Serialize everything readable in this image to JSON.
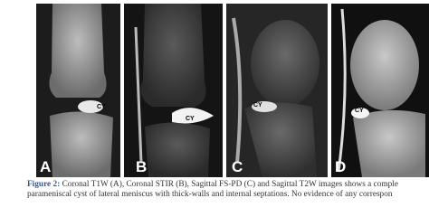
{
  "figure": {
    "panels": [
      {
        "label": "A",
        "annotation": "CY"
      },
      {
        "label": "B",
        "annotation": "CY"
      },
      {
        "label": "C",
        "annotation": "CY"
      },
      {
        "label": "D",
        "annotation": "CY"
      }
    ],
    "caption": {
      "prefix": "Figure 2:",
      "line1": "Coronal T1W (A), Coronal STIR (B), Sagittal FS-PD (C) and Sagittal T2W images shows a comple",
      "line2": "parameniscal cyst of lateral meniscus with thick-walls and internal septations. No evidence of any correspon"
    }
  }
}
